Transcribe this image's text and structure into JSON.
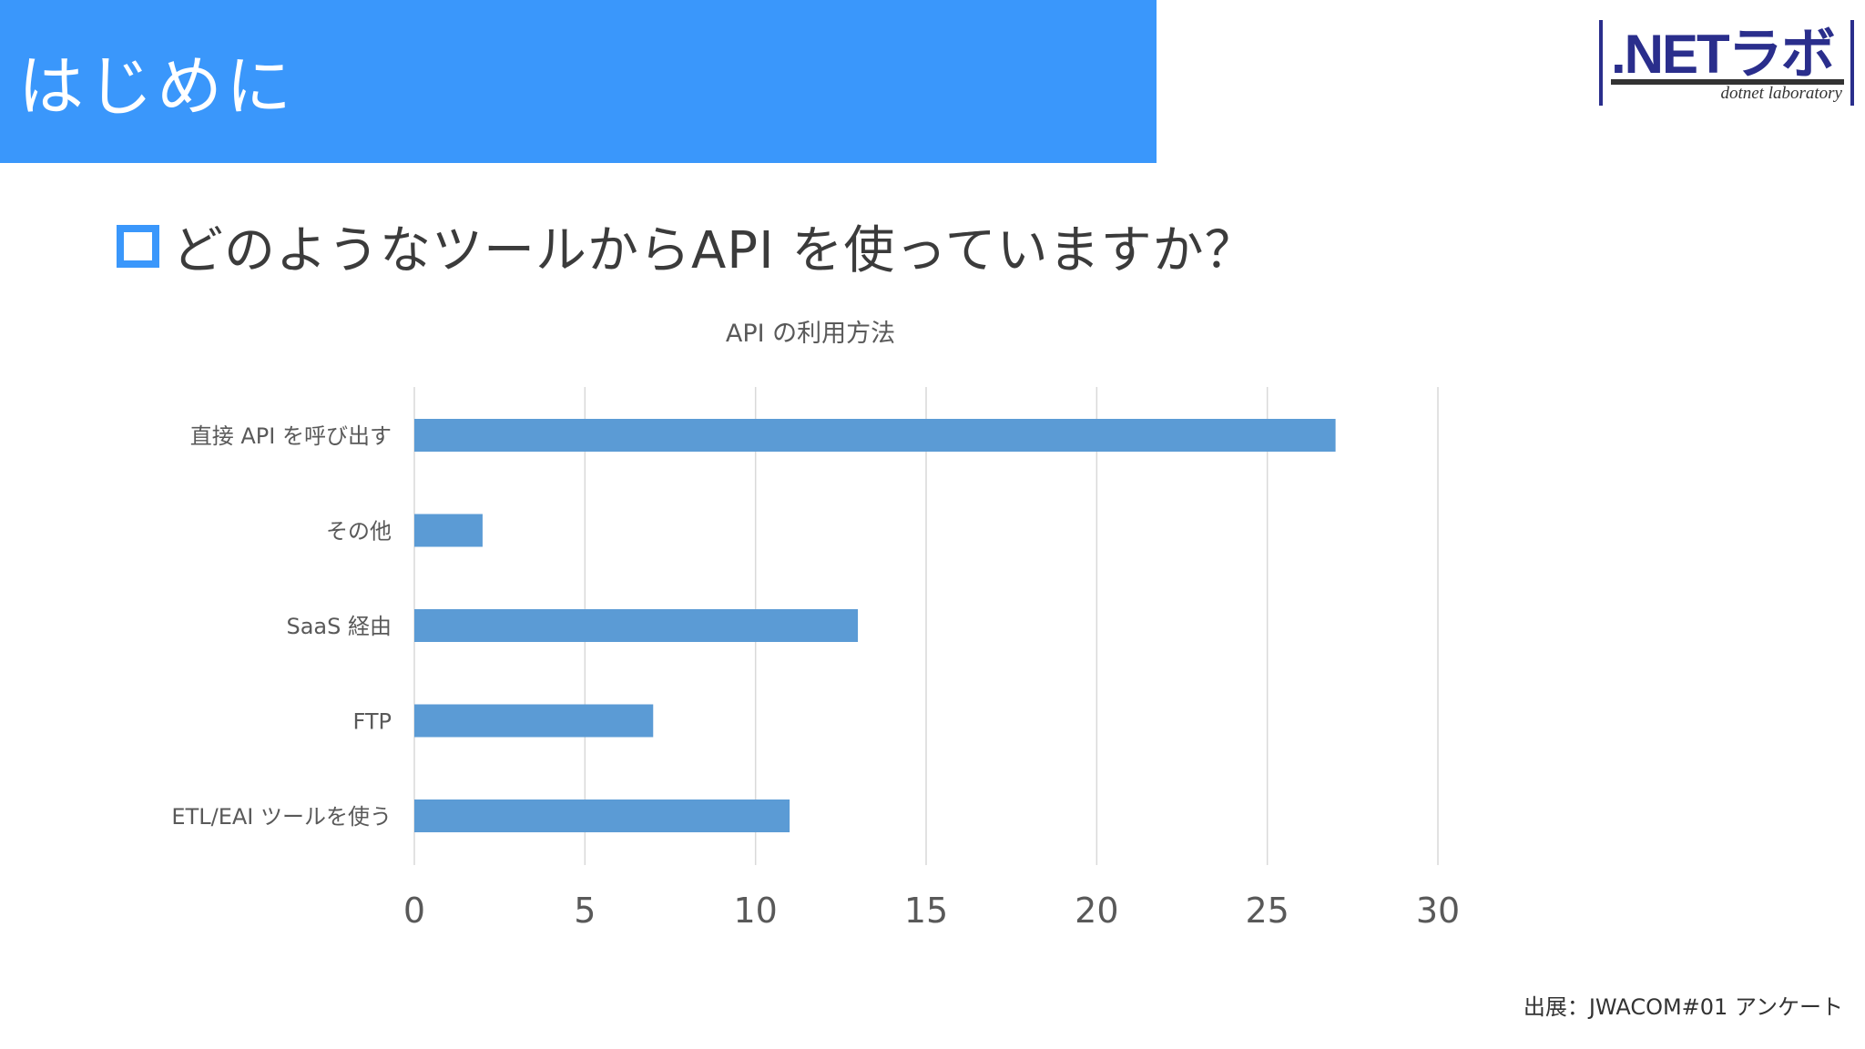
{
  "slide": {
    "title": "はじめに",
    "question": "どのようなツールからAPI を使っていますか？",
    "source": "出展：JWACOM#01 アンケート"
  },
  "logo": {
    "text": ".NETラボ",
    "subtext": "dotnet laboratory",
    "colors": {
      "main": "#2a2e8c",
      "accent": "#5a5fc2",
      "underline": "#333333"
    }
  },
  "colors": {
    "header_band": "#3a97fb",
    "bar": "#5b9bd5",
    "gridline": "#d9d9d9",
    "text": "#595959"
  },
  "chart_data": {
    "type": "bar",
    "orientation": "horizontal",
    "title": "API の利用方法",
    "categories": [
      "直接 API を呼び出す",
      "その他",
      "SaaS 経由",
      "FTP",
      "ETL/EAI ツールを使う"
    ],
    "values": [
      27,
      2,
      13,
      7,
      11
    ],
    "xlim": [
      0,
      30
    ],
    "xticks": [
      0,
      5,
      10,
      15,
      20,
      25,
      30
    ],
    "grid": true,
    "legend": false
  }
}
